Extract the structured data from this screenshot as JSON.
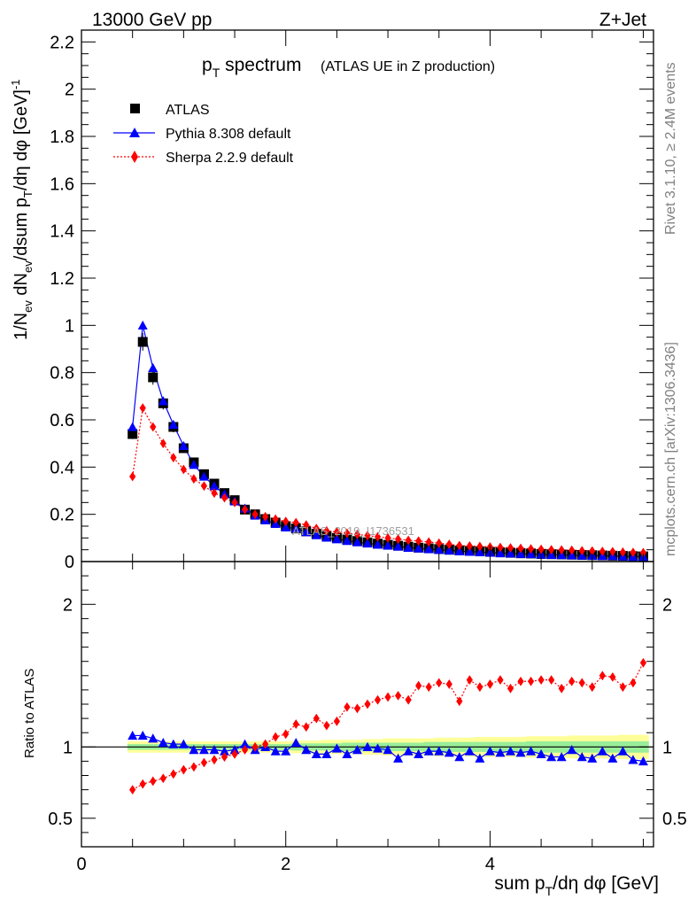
{
  "header": {
    "left": "13000 GeV pp",
    "right": "Z+Jet"
  },
  "side_labels": {
    "rivet": "Rivet 3.1.10, ≥ 2.4M events",
    "mcplots": "mcplots.cern.ch [arXiv:1306.3436]"
  },
  "watermark": "ATLAS_2019_I1736531",
  "colors": {
    "atlas": "#000000",
    "pythia": "#0000ff",
    "sherpa": "#ff0000",
    "band_inner": "#99ee99",
    "band_outer": "#ffff99"
  },
  "chart_data": [
    {
      "type": "scatter",
      "title": "p_T spectrum",
      "title_main": "p",
      "title_sub": "T",
      "title_rest": " spectrum",
      "title_note": "(ATLAS UE in Z production)",
      "ylabel": "1/N_ev dN_ev/dsum p_T/dη dφ [GeV]^-1",
      "xlim": [
        0,
        5.6
      ],
      "ylim": [
        0,
        2.25
      ],
      "x_ticks": [
        "0",
        "2",
        "4"
      ],
      "y_ticks": [
        "0",
        "0.2",
        "0.4",
        "0.6",
        "0.8",
        "1",
        "1.2",
        "1.4",
        "1.6",
        "1.8",
        "2",
        "2.2"
      ],
      "legend_position": "top-left",
      "legend": [
        "ATLAS",
        "Pythia 8.308 default",
        "Sherpa 2.2.9 default"
      ],
      "x": [
        0.5,
        0.6,
        0.7,
        0.8,
        0.9,
        1.0,
        1.1,
        1.2,
        1.3,
        1.4,
        1.5,
        1.6,
        1.7,
        1.8,
        1.9,
        2.0,
        2.1,
        2.2,
        2.3,
        2.4,
        2.5,
        2.6,
        2.7,
        2.8,
        2.9,
        3.0,
        3.1,
        3.2,
        3.3,
        3.4,
        3.5,
        3.6,
        3.7,
        3.8,
        3.9,
        4.0,
        4.1,
        4.2,
        4.3,
        4.4,
        4.5,
        4.6,
        4.7,
        4.8,
        4.9,
        5.0,
        5.1,
        5.2,
        5.3,
        5.4,
        5.5
      ],
      "series": [
        {
          "name": "ATLAS",
          "values": [
            0.54,
            0.93,
            0.78,
            0.67,
            0.57,
            0.48,
            0.42,
            0.37,
            0.33,
            0.29,
            0.26,
            0.22,
            0.2,
            0.18,
            0.165,
            0.15,
            0.14,
            0.128,
            0.118,
            0.108,
            0.1,
            0.093,
            0.087,
            0.081,
            0.076,
            0.071,
            0.067,
            0.063,
            0.059,
            0.056,
            0.053,
            0.05,
            0.047,
            0.045,
            0.043,
            0.041,
            0.039,
            0.037,
            0.035,
            0.034,
            0.032,
            0.031,
            0.03,
            0.029,
            0.028,
            0.027,
            0.026,
            0.025,
            0.024,
            0.023,
            0.022
          ]
        },
        {
          "name": "Pythia 8.308 default",
          "values": [
            0.57,
            1.0,
            0.82,
            0.68,
            0.58,
            0.49,
            0.41,
            0.36,
            0.32,
            0.285,
            0.255,
            0.225,
            0.195,
            0.175,
            0.16,
            0.145,
            0.14,
            0.125,
            0.112,
            0.102,
            0.095,
            0.088,
            0.082,
            0.077,
            0.072,
            0.068,
            0.064,
            0.059,
            0.056,
            0.053,
            0.05,
            0.047,
            0.044,
            0.042,
            0.04,
            0.038,
            0.036,
            0.035,
            0.033,
            0.032,
            0.03,
            0.029,
            0.028,
            0.027,
            0.026,
            0.025,
            0.024,
            0.024,
            0.022,
            0.021,
            0.021
          ]
        },
        {
          "name": "Sherpa 2.2.9 default",
          "values": [
            0.36,
            0.65,
            0.57,
            0.5,
            0.44,
            0.39,
            0.35,
            0.32,
            0.29,
            0.27,
            0.25,
            0.22,
            0.2,
            0.19,
            0.18,
            0.17,
            0.165,
            0.155,
            0.14,
            0.13,
            0.125,
            0.12,
            0.115,
            0.11,
            0.105,
            0.1,
            0.095,
            0.09,
            0.087,
            0.083,
            0.078,
            0.073,
            0.068,
            0.066,
            0.064,
            0.062,
            0.06,
            0.058,
            0.056,
            0.054,
            0.052,
            0.05,
            0.049,
            0.048,
            0.046,
            0.045,
            0.043,
            0.042,
            0.04,
            0.039,
            0.038
          ]
        }
      ]
    },
    {
      "type": "scatter",
      "xlabel": "sum p_T/dη dφ [GeV]",
      "ylabel": "Ratio to ATLAS",
      "xlim": [
        0,
        5.6
      ],
      "ylim": [
        0.3,
        2.3
      ],
      "x_ticks": [
        "0",
        "2",
        "4"
      ],
      "y_ticks": [
        "0.5",
        "1",
        "2"
      ],
      "x": [
        0.5,
        0.6,
        0.7,
        0.8,
        0.9,
        1.0,
        1.1,
        1.2,
        1.3,
        1.4,
        1.5,
        1.6,
        1.7,
        1.8,
        1.9,
        2.0,
        2.1,
        2.2,
        2.3,
        2.4,
        2.5,
        2.6,
        2.7,
        2.8,
        2.9,
        3.0,
        3.1,
        3.2,
        3.3,
        3.4,
        3.5,
        3.6,
        3.7,
        3.8,
        3.9,
        4.0,
        4.1,
        4.2,
        4.3,
        4.4,
        4.5,
        4.6,
        4.7,
        4.8,
        4.9,
        5.0,
        5.1,
        5.2,
        5.3,
        5.4,
        5.5
      ],
      "band_inner": [
        0.02,
        0.02,
        0.02,
        0.02,
        0.02,
        0.02,
        0.02,
        0.02,
        0.02,
        0.02,
        0.02,
        0.02,
        0.02,
        0.02,
        0.02,
        0.02,
        0.025,
        0.025,
        0.025,
        0.025,
        0.025,
        0.03,
        0.03,
        0.03,
        0.03,
        0.03,
        0.03,
        0.03,
        0.03,
        0.035,
        0.035,
        0.035,
        0.035,
        0.035,
        0.035,
        0.035,
        0.035,
        0.035,
        0.035,
        0.04,
        0.04,
        0.04,
        0.04,
        0.04,
        0.04,
        0.04,
        0.04,
        0.04,
        0.04,
        0.04,
        0.04
      ],
      "band_outer": [
        0.04,
        0.04,
        0.04,
        0.04,
        0.04,
        0.04,
        0.04,
        0.04,
        0.04,
        0.04,
        0.04,
        0.04,
        0.04,
        0.04,
        0.04,
        0.04,
        0.045,
        0.045,
        0.045,
        0.05,
        0.05,
        0.05,
        0.05,
        0.055,
        0.055,
        0.06,
        0.06,
        0.06,
        0.06,
        0.06,
        0.065,
        0.065,
        0.065,
        0.065,
        0.07,
        0.07,
        0.07,
        0.07,
        0.07,
        0.075,
        0.075,
        0.075,
        0.075,
        0.08,
        0.08,
        0.08,
        0.08,
        0.08,
        0.085,
        0.085,
        0.085
      ],
      "series": [
        {
          "name": "Pythia 8.308 default",
          "values": [
            1.08,
            1.08,
            1.06,
            1.03,
            1.02,
            1.02,
            0.98,
            0.98,
            0.98,
            0.97,
            0.98,
            1.02,
            0.98,
            1.0,
            0.97,
            0.97,
            1.03,
            0.98,
            0.95,
            0.95,
            0.99,
            0.95,
            0.98,
            1.0,
            0.99,
            0.98,
            0.92,
            0.97,
            0.95,
            0.97,
            0.97,
            0.96,
            0.93,
            0.97,
            0.92,
            0.97,
            0.96,
            0.97,
            0.96,
            0.97,
            0.95,
            0.93,
            0.93,
            0.98,
            0.93,
            0.92,
            0.97,
            0.92,
            0.97,
            0.91,
            0.9
          ]
        },
        {
          "name": "Sherpa 2.2.9 default",
          "values": [
            0.7,
            0.74,
            0.76,
            0.78,
            0.81,
            0.84,
            0.86,
            0.89,
            0.91,
            0.93,
            0.95,
            0.98,
            1.0,
            1.02,
            1.07,
            1.09,
            1.16,
            1.14,
            1.2,
            1.15,
            1.18,
            1.28,
            1.27,
            1.3,
            1.33,
            1.35,
            1.36,
            1.33,
            1.43,
            1.42,
            1.45,
            1.44,
            1.32,
            1.47,
            1.42,
            1.44,
            1.47,
            1.41,
            1.46,
            1.46,
            1.47,
            1.47,
            1.41,
            1.46,
            1.45,
            1.42,
            1.5,
            1.49,
            1.42,
            1.45,
            1.59
          ]
        }
      ]
    }
  ]
}
